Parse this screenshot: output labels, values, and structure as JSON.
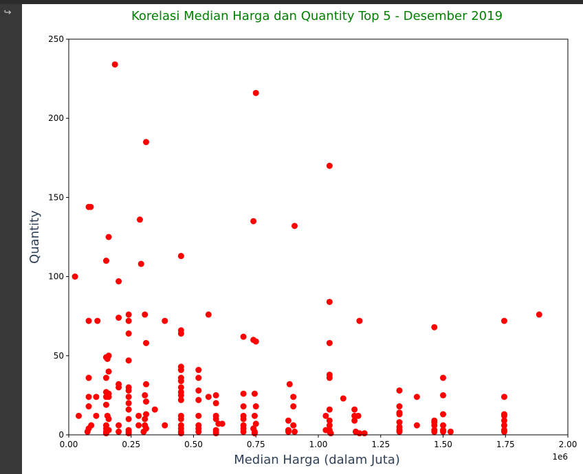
{
  "output": {
    "icon": "output-arrow-icon"
  },
  "chart_data": {
    "type": "scatter",
    "title": "Korelasi Median Harga dan Quantity Top 5 - Desember 2019",
    "xlabel": "Median Harga (dalam Juta)",
    "ylabel": "Quantity",
    "x_offset_label": "1e6",
    "xlim": [
      0,
      2000000
    ],
    "ylim": [
      0,
      250
    ],
    "xticks": [
      0,
      250000,
      500000,
      750000,
      1000000,
      1250000,
      1500000,
      1750000,
      2000000
    ],
    "xtick_labels": [
      "0.00",
      "0.25",
      "0.50",
      "0.75",
      "1.00",
      "1.25",
      "1.50",
      "1.75",
      "2.00"
    ],
    "yticks": [
      0,
      50,
      100,
      150,
      200,
      250
    ],
    "ytick_labels": [
      "0",
      "50",
      "100",
      "150",
      "200",
      "250"
    ],
    "grid": false,
    "colors": {
      "marker": "#ff0000",
      "title": "#008000",
      "axis_label": "#2e4057"
    },
    "points": [
      [
        185000,
        234
      ],
      [
        750000,
        216
      ],
      [
        310000,
        185
      ],
      [
        1045000,
        170
      ],
      [
        80000,
        144
      ],
      [
        88000,
        144
      ],
      [
        285000,
        136
      ],
      [
        740000,
        135
      ],
      [
        905000,
        132
      ],
      [
        160000,
        125
      ],
      [
        150000,
        110
      ],
      [
        290000,
        108
      ],
      [
        450000,
        113
      ],
      [
        25000,
        100
      ],
      [
        200000,
        97
      ],
      [
        1045000,
        84
      ],
      [
        80000,
        72
      ],
      [
        115000,
        72
      ],
      [
        200000,
        74
      ],
      [
        240000,
        76
      ],
      [
        240000,
        72
      ],
      [
        305000,
        76
      ],
      [
        385000,
        72
      ],
      [
        560000,
        76
      ],
      [
        1165000,
        72
      ],
      [
        1745000,
        72
      ],
      [
        1885000,
        76
      ],
      [
        450000,
        66
      ],
      [
        450000,
        64
      ],
      [
        240000,
        64
      ],
      [
        700000,
        62
      ],
      [
        740000,
        60
      ],
      [
        750000,
        59
      ],
      [
        310000,
        58
      ],
      [
        1045000,
        58
      ],
      [
        1465000,
        68
      ],
      [
        150000,
        49
      ],
      [
        160000,
        50
      ],
      [
        155000,
        48
      ],
      [
        240000,
        47
      ],
      [
        450000,
        43
      ],
      [
        450000,
        41
      ],
      [
        520000,
        41
      ],
      [
        160000,
        40
      ],
      [
        1045000,
        38
      ],
      [
        1045000,
        36
      ],
      [
        80000,
        36
      ],
      [
        150000,
        36
      ],
      [
        450000,
        36
      ],
      [
        450000,
        34
      ],
      [
        520000,
        36
      ],
      [
        1500000,
        36
      ],
      [
        200000,
        32
      ],
      [
        310000,
        32
      ],
      [
        885000,
        32
      ],
      [
        450000,
        30
      ],
      [
        200000,
        30
      ],
      [
        240000,
        30
      ],
      [
        240000,
        28
      ],
      [
        1325000,
        28
      ],
      [
        520000,
        28
      ],
      [
        450000,
        27
      ],
      [
        150000,
        27
      ],
      [
        160000,
        26
      ],
      [
        700000,
        26
      ],
      [
        745000,
        26
      ],
      [
        305000,
        25
      ],
      [
        450000,
        25
      ],
      [
        590000,
        25
      ],
      [
        1500000,
        25
      ],
      [
        80000,
        24
      ],
      [
        110000,
        24
      ],
      [
        150000,
        24
      ],
      [
        160000,
        24
      ],
      [
        240000,
        24
      ],
      [
        560000,
        24
      ],
      [
        900000,
        24
      ],
      [
        1395000,
        24
      ],
      [
        1745000,
        24
      ],
      [
        1100000,
        23
      ],
      [
        450000,
        22
      ],
      [
        520000,
        22
      ],
      [
        310000,
        21
      ],
      [
        240000,
        20
      ],
      [
        590000,
        20
      ],
      [
        150000,
        19
      ],
      [
        700000,
        18
      ],
      [
        750000,
        18
      ],
      [
        900000,
        18
      ],
      [
        1325000,
        18
      ],
      [
        80000,
        18
      ],
      [
        240000,
        16
      ],
      [
        345000,
        16
      ],
      [
        1145000,
        16
      ],
      [
        1045000,
        16
      ],
      [
        1465000,
        9
      ],
      [
        1745000,
        13
      ],
      [
        1745000,
        12
      ],
      [
        1325000,
        14
      ],
      [
        1325000,
        13
      ],
      [
        110000,
        12
      ],
      [
        40000,
        12
      ],
      [
        155000,
        12
      ],
      [
        310000,
        13
      ],
      [
        280000,
        12
      ],
      [
        450000,
        12
      ],
      [
        520000,
        12
      ],
      [
        590000,
        12
      ],
      [
        700000,
        12
      ],
      [
        745000,
        12
      ],
      [
        1030000,
        12
      ],
      [
        1145000,
        12
      ],
      [
        1160000,
        12
      ],
      [
        1500000,
        13
      ],
      [
        160000,
        10
      ],
      [
        240000,
        10
      ],
      [
        305000,
        10
      ],
      [
        450000,
        10
      ],
      [
        590000,
        10
      ],
      [
        700000,
        10
      ],
      [
        1145000,
        9
      ],
      [
        1045000,
        9
      ],
      [
        880000,
        9
      ],
      [
        1745000,
        9
      ],
      [
        1325000,
        8
      ],
      [
        1465000,
        8
      ],
      [
        90000,
        6
      ],
      [
        150000,
        6
      ],
      [
        200000,
        6
      ],
      [
        280000,
        6
      ],
      [
        305000,
        6
      ],
      [
        385000,
        6
      ],
      [
        450000,
        6
      ],
      [
        520000,
        6
      ],
      [
        600000,
        7
      ],
      [
        615000,
        7
      ],
      [
        700000,
        6
      ],
      [
        750000,
        7
      ],
      [
        900000,
        6
      ],
      [
        1045000,
        6
      ],
      [
        1395000,
        6
      ],
      [
        1465000,
        6
      ],
      [
        1745000,
        6
      ],
      [
        1500000,
        6
      ],
      [
        1325000,
        5
      ],
      [
        80000,
        4
      ],
      [
        150000,
        4
      ],
      [
        160000,
        3
      ],
      [
        240000,
        3
      ],
      [
        310000,
        4
      ],
      [
        450000,
        4
      ],
      [
        520000,
        4
      ],
      [
        590000,
        3
      ],
      [
        700000,
        4
      ],
      [
        740000,
        4
      ],
      [
        880000,
        3
      ],
      [
        1030000,
        3
      ],
      [
        1045000,
        3
      ],
      [
        1325000,
        3
      ],
      [
        1465000,
        3
      ],
      [
        1500000,
        3
      ],
      [
        1745000,
        3
      ],
      [
        75000,
        2
      ],
      [
        150000,
        2
      ],
      [
        200000,
        2
      ],
      [
        240000,
        2
      ],
      [
        300000,
        2
      ],
      [
        450000,
        2
      ],
      [
        520000,
        2
      ],
      [
        590000,
        2
      ],
      [
        700000,
        2
      ],
      [
        745000,
        2
      ],
      [
        880000,
        2
      ],
      [
        905000,
        2
      ],
      [
        1045000,
        2
      ],
      [
        1150000,
        2
      ],
      [
        1325000,
        2
      ],
      [
        1465000,
        2
      ],
      [
        1500000,
        2
      ],
      [
        1530000,
        2
      ],
      [
        1745000,
        2
      ],
      [
        1165000,
        1
      ],
      [
        1185000,
        1
      ],
      [
        150000,
        1
      ],
      [
        240000,
        1
      ],
      [
        450000,
        1
      ],
      [
        590000,
        1
      ],
      [
        745000,
        1
      ],
      [
        1050000,
        1
      ]
    ]
  }
}
